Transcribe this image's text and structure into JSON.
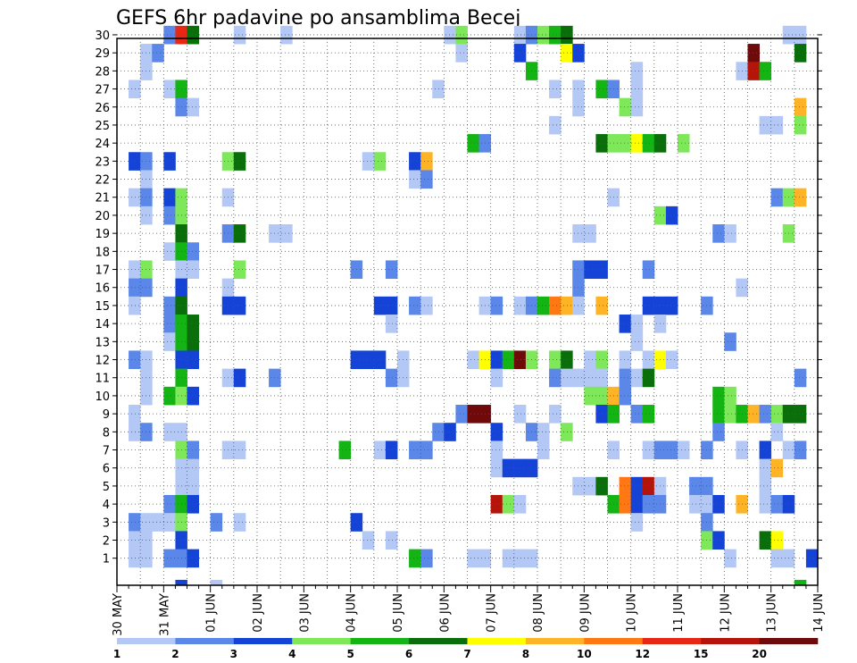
{
  "chart_data": {
    "type": "heatmap",
    "title": "GEFS 6hr padavine po ansamblima Becej",
    "xlabel": "",
    "ylabel": "",
    "grid": "on",
    "x_ticks": [
      "30 MAY",
      "31 MAY",
      "01 JUN",
      "02 JUN",
      "03 JUN",
      "04 JUN",
      "05 JUN",
      "06 JUN",
      "07 JUN",
      "08 JUN",
      "09 JUN",
      "10 JUN",
      "11 JUN",
      "12 JUN",
      "13 JUN",
      "14 JUN"
    ],
    "y_ticks": [
      1,
      2,
      3,
      4,
      5,
      6,
      7,
      8,
      9,
      10,
      11,
      12,
      13,
      14,
      15,
      16,
      17,
      18,
      19,
      20,
      21,
      22,
      23,
      24,
      25,
      26,
      27,
      28,
      29,
      30
    ],
    "x_time_steps_per_day": 4,
    "legend_position": "bottom",
    "legend_levels": [
      "1",
      "2",
      "3",
      "4",
      "5",
      "6",
      "7",
      "8",
      "10",
      "12",
      "15",
      "20"
    ],
    "legend_colors": [
      "#b4c8f5",
      "#5a87e8",
      "#1443d6",
      "#7ee85a",
      "#14b414",
      "#0a6e0a",
      "#ffff00",
      "#ffb428",
      "#ff7814",
      "#e62814",
      "#b4140a",
      "#6e0a0a"
    ],
    "cells": [
      [
        4,
        30,
        1
      ],
      [
        5,
        30,
        9
      ],
      [
        6,
        30,
        5
      ],
      [
        10,
        30,
        0
      ],
      [
        14,
        30,
        0
      ],
      [
        28,
        30,
        0
      ],
      [
        29,
        30,
        3
      ],
      [
        34,
        30,
        0
      ],
      [
        35,
        30,
        1
      ],
      [
        36,
        30,
        3
      ],
      [
        37,
        30,
        4
      ],
      [
        38,
        30,
        5
      ],
      [
        57,
        30,
        0
      ],
      [
        58,
        30,
        0
      ],
      [
        2,
        29,
        0
      ],
      [
        3,
        29,
        1
      ],
      [
        29,
        29,
        0
      ],
      [
        34,
        29,
        2
      ],
      [
        38,
        29,
        6
      ],
      [
        39,
        29,
        2
      ],
      [
        54,
        29,
        11
      ],
      [
        58,
        29,
        5
      ],
      [
        2,
        28,
        0
      ],
      [
        35,
        28,
        4
      ],
      [
        44,
        28,
        0
      ],
      [
        53,
        28,
        0
      ],
      [
        54,
        28,
        10
      ],
      [
        55,
        28,
        4
      ],
      [
        1,
        27,
        0
      ],
      [
        4,
        27,
        0
      ],
      [
        5,
        27,
        4
      ],
      [
        27,
        27,
        0
      ],
      [
        37,
        27,
        0
      ],
      [
        39,
        27,
        0
      ],
      [
        41,
        27,
        4
      ],
      [
        42,
        27,
        1
      ],
      [
        44,
        27,
        0
      ],
      [
        5,
        26,
        1
      ],
      [
        6,
        26,
        0
      ],
      [
        39,
        26,
        0
      ],
      [
        43,
        26,
        3
      ],
      [
        44,
        26,
        0
      ],
      [
        58,
        26,
        7
      ],
      [
        37,
        25,
        0
      ],
      [
        55,
        25,
        0
      ],
      [
        56,
        25,
        0
      ],
      [
        58,
        25,
        3
      ],
      [
        30,
        24,
        4
      ],
      [
        31,
        24,
        1
      ],
      [
        41,
        24,
        5
      ],
      [
        42,
        24,
        3
      ],
      [
        43,
        24,
        3
      ],
      [
        44,
        24,
        6
      ],
      [
        45,
        24,
        4
      ],
      [
        46,
        24,
        5
      ],
      [
        48,
        24,
        3
      ],
      [
        1,
        23,
        2
      ],
      [
        2,
        23,
        1
      ],
      [
        4,
        23,
        2
      ],
      [
        9,
        23,
        3
      ],
      [
        10,
        23,
        5
      ],
      [
        21,
        23,
        0
      ],
      [
        22,
        23,
        3
      ],
      [
        25,
        23,
        2
      ],
      [
        26,
        23,
        7
      ],
      [
        2,
        22,
        0
      ],
      [
        25,
        22,
        0
      ],
      [
        26,
        22,
        1
      ],
      [
        1,
        21,
        0
      ],
      [
        2,
        21,
        1
      ],
      [
        4,
        21,
        2
      ],
      [
        5,
        21,
        3
      ],
      [
        9,
        21,
        0
      ],
      [
        42,
        21,
        0
      ],
      [
        56,
        21,
        1
      ],
      [
        57,
        21,
        3
      ],
      [
        58,
        21,
        7
      ],
      [
        2,
        20,
        0
      ],
      [
        4,
        20,
        1
      ],
      [
        5,
        20,
        3
      ],
      [
        46,
        20,
        3
      ],
      [
        47,
        20,
        2
      ],
      [
        5,
        19,
        5
      ],
      [
        9,
        19,
        1
      ],
      [
        10,
        19,
        5
      ],
      [
        13,
        19,
        0
      ],
      [
        14,
        19,
        0
      ],
      [
        39,
        19,
        0
      ],
      [
        40,
        19,
        0
      ],
      [
        51,
        19,
        1
      ],
      [
        52,
        19,
        0
      ],
      [
        57,
        19,
        3
      ],
      [
        4,
        18,
        0
      ],
      [
        5,
        18,
        4
      ],
      [
        6,
        18,
        1
      ],
      [
        1,
        17,
        0
      ],
      [
        2,
        17,
        3
      ],
      [
        5,
        17,
        0
      ],
      [
        6,
        17,
        0
      ],
      [
        10,
        17,
        3
      ],
      [
        20,
        17,
        1
      ],
      [
        23,
        17,
        1
      ],
      [
        39,
        17,
        1
      ],
      [
        40,
        17,
        2
      ],
      [
        41,
        17,
        2
      ],
      [
        45,
        17,
        1
      ],
      [
        1,
        16,
        1
      ],
      [
        2,
        16,
        1
      ],
      [
        5,
        16,
        2
      ],
      [
        9,
        16,
        0
      ],
      [
        39,
        16,
        1
      ],
      [
        53,
        16,
        0
      ],
      [
        1,
        15,
        0
      ],
      [
        4,
        15,
        1
      ],
      [
        5,
        15,
        5
      ],
      [
        9,
        15,
        2
      ],
      [
        10,
        15,
        2
      ],
      [
        22,
        15,
        2
      ],
      [
        23,
        15,
        2
      ],
      [
        25,
        15,
        1
      ],
      [
        26,
        15,
        0
      ],
      [
        31,
        15,
        0
      ],
      [
        32,
        15,
        1
      ],
      [
        34,
        15,
        0
      ],
      [
        35,
        15,
        1
      ],
      [
        36,
        15,
        4
      ],
      [
        37,
        15,
        8
      ],
      [
        38,
        15,
        7
      ],
      [
        39,
        15,
        0
      ],
      [
        41,
        15,
        7
      ],
      [
        45,
        15,
        2
      ],
      [
        46,
        15,
        2
      ],
      [
        47,
        15,
        2
      ],
      [
        50,
        15,
        1
      ],
      [
        4,
        14,
        1
      ],
      [
        5,
        14,
        4
      ],
      [
        6,
        14,
        5
      ],
      [
        23,
        14,
        0
      ],
      [
        43,
        14,
        2
      ],
      [
        44,
        14,
        0
      ],
      [
        46,
        14,
        0
      ],
      [
        4,
        13,
        0
      ],
      [
        5,
        13,
        4
      ],
      [
        6,
        13,
        5
      ],
      [
        44,
        13,
        0
      ],
      [
        52,
        13,
        1
      ],
      [
        1,
        12,
        1
      ],
      [
        2,
        12,
        0
      ],
      [
        5,
        12,
        2
      ],
      [
        6,
        12,
        2
      ],
      [
        20,
        12,
        2
      ],
      [
        21,
        12,
        2
      ],
      [
        22,
        12,
        2
      ],
      [
        24,
        12,
        0
      ],
      [
        30,
        12,
        0
      ],
      [
        31,
        12,
        6
      ],
      [
        32,
        12,
        2
      ],
      [
        33,
        12,
        4
      ],
      [
        34,
        12,
        11
      ],
      [
        35,
        12,
        3
      ],
      [
        37,
        12,
        3
      ],
      [
        38,
        12,
        5
      ],
      [
        40,
        12,
        0
      ],
      [
        41,
        12,
        3
      ],
      [
        43,
        12,
        0
      ],
      [
        45,
        12,
        0
      ],
      [
        46,
        12,
        6
      ],
      [
        47,
        12,
        0
      ],
      [
        2,
        11,
        0
      ],
      [
        5,
        11,
        4
      ],
      [
        9,
        11,
        0
      ],
      [
        10,
        11,
        2
      ],
      [
        13,
        11,
        1
      ],
      [
        23,
        11,
        1
      ],
      [
        24,
        11,
        0
      ],
      [
        32,
        11,
        0
      ],
      [
        37,
        11,
        1
      ],
      [
        38,
        11,
        0
      ],
      [
        39,
        11,
        0
      ],
      [
        40,
        11,
        0
      ],
      [
        41,
        11,
        0
      ],
      [
        43,
        11,
        1
      ],
      [
        44,
        11,
        0
      ],
      [
        45,
        11,
        5
      ],
      [
        58,
        11,
        1
      ],
      [
        2,
        10,
        0
      ],
      [
        4,
        10,
        4
      ],
      [
        5,
        10,
        3
      ],
      [
        6,
        10,
        2
      ],
      [
        40,
        10,
        3
      ],
      [
        41,
        10,
        3
      ],
      [
        42,
        10,
        7
      ],
      [
        43,
        10,
        1
      ],
      [
        51,
        10,
        4
      ],
      [
        52,
        10,
        3
      ],
      [
        1,
        9,
        0
      ],
      [
        29,
        9,
        1
      ],
      [
        30,
        9,
        11
      ],
      [
        31,
        9,
        11
      ],
      [
        34,
        9,
        0
      ],
      [
        37,
        9,
        0
      ],
      [
        41,
        9,
        2
      ],
      [
        42,
        9,
        4
      ],
      [
        44,
        9,
        1
      ],
      [
        45,
        9,
        4
      ],
      [
        51,
        9,
        4
      ],
      [
        52,
        9,
        3
      ],
      [
        53,
        9,
        4
      ],
      [
        54,
        9,
        7
      ],
      [
        55,
        9,
        1
      ],
      [
        56,
        9,
        3
      ],
      [
        57,
        9,
        5
      ],
      [
        58,
        9,
        5
      ],
      [
        1,
        8,
        0
      ],
      [
        2,
        8,
        1
      ],
      [
        4,
        8,
        0
      ],
      [
        5,
        8,
        0
      ],
      [
        27,
        8,
        1
      ],
      [
        28,
        8,
        2
      ],
      [
        32,
        8,
        2
      ],
      [
        35,
        8,
        1
      ],
      [
        36,
        8,
        0
      ],
      [
        38,
        8,
        3
      ],
      [
        51,
        8,
        1
      ],
      [
        56,
        8,
        0
      ],
      [
        5,
        7,
        3
      ],
      [
        6,
        7,
        1
      ],
      [
        9,
        7,
        0
      ],
      [
        10,
        7,
        0
      ],
      [
        19,
        7,
        4
      ],
      [
        22,
        7,
        0
      ],
      [
        23,
        7,
        2
      ],
      [
        25,
        7,
        1
      ],
      [
        26,
        7,
        1
      ],
      [
        32,
        7,
        0
      ],
      [
        36,
        7,
        0
      ],
      [
        42,
        7,
        0
      ],
      [
        45,
        7,
        0
      ],
      [
        46,
        7,
        1
      ],
      [
        47,
        7,
        1
      ],
      [
        48,
        7,
        0
      ],
      [
        50,
        7,
        1
      ],
      [
        53,
        7,
        0
      ],
      [
        55,
        7,
        2
      ],
      [
        57,
        7,
        0
      ],
      [
        58,
        7,
        1
      ],
      [
        5,
        6,
        0
      ],
      [
        6,
        6,
        0
      ],
      [
        32,
        6,
        0
      ],
      [
        33,
        6,
        2
      ],
      [
        34,
        6,
        2
      ],
      [
        35,
        6,
        2
      ],
      [
        55,
        6,
        0
      ],
      [
        56,
        6,
        7
      ],
      [
        5,
        5,
        0
      ],
      [
        6,
        5,
        0
      ],
      [
        39,
        5,
        0
      ],
      [
        40,
        5,
        0
      ],
      [
        41,
        5,
        5
      ],
      [
        43,
        5,
        8
      ],
      [
        44,
        5,
        2
      ],
      [
        45,
        5,
        10
      ],
      [
        46,
        5,
        0
      ],
      [
        49,
        5,
        1
      ],
      [
        50,
        5,
        1
      ],
      [
        55,
        5,
        0
      ],
      [
        4,
        4,
        1
      ],
      [
        5,
        4,
        4
      ],
      [
        6,
        4,
        2
      ],
      [
        32,
        4,
        10
      ],
      [
        33,
        4,
        3
      ],
      [
        34,
        4,
        0
      ],
      [
        42,
        4,
        4
      ],
      [
        43,
        4,
        8
      ],
      [
        44,
        4,
        2
      ],
      [
        45,
        4,
        1
      ],
      [
        46,
        4,
        1
      ],
      [
        49,
        4,
        0
      ],
      [
        50,
        4,
        0
      ],
      [
        51,
        4,
        2
      ],
      [
        53,
        4,
        7
      ],
      [
        55,
        4,
        0
      ],
      [
        56,
        4,
        1
      ],
      [
        57,
        4,
        2
      ],
      [
        1,
        3,
        1
      ],
      [
        2,
        3,
        0
      ],
      [
        3,
        3,
        0
      ],
      [
        4,
        3,
        0
      ],
      [
        5,
        3,
        3
      ],
      [
        8,
        3,
        1
      ],
      [
        10,
        3,
        0
      ],
      [
        20,
        3,
        2
      ],
      [
        44,
        3,
        0
      ],
      [
        50,
        3,
        1
      ],
      [
        1,
        2,
        0
      ],
      [
        2,
        2,
        0
      ],
      [
        5,
        2,
        2
      ],
      [
        21,
        2,
        0
      ],
      [
        23,
        2,
        0
      ],
      [
        50,
        2,
        3
      ],
      [
        51,
        2,
        2
      ],
      [
        55,
        2,
        5
      ],
      [
        56,
        2,
        6
      ],
      [
        1,
        1,
        0
      ],
      [
        2,
        1,
        0
      ],
      [
        4,
        1,
        1
      ],
      [
        5,
        1,
        1
      ],
      [
        6,
        1,
        2
      ],
      [
        25,
        1,
        4
      ],
      [
        26,
        1,
        1
      ],
      [
        30,
        1,
        0
      ],
      [
        31,
        1,
        0
      ],
      [
        33,
        1,
        0
      ],
      [
        34,
        1,
        0
      ],
      [
        35,
        1,
        0
      ],
      [
        52,
        1,
        0
      ],
      [
        56,
        1,
        0
      ],
      [
        57,
        1,
        0
      ],
      [
        59,
        1,
        2
      ],
      [
        5,
        0,
        2
      ],
      [
        8,
        0,
        0
      ],
      [
        58,
        0,
        4
      ]
    ]
  }
}
